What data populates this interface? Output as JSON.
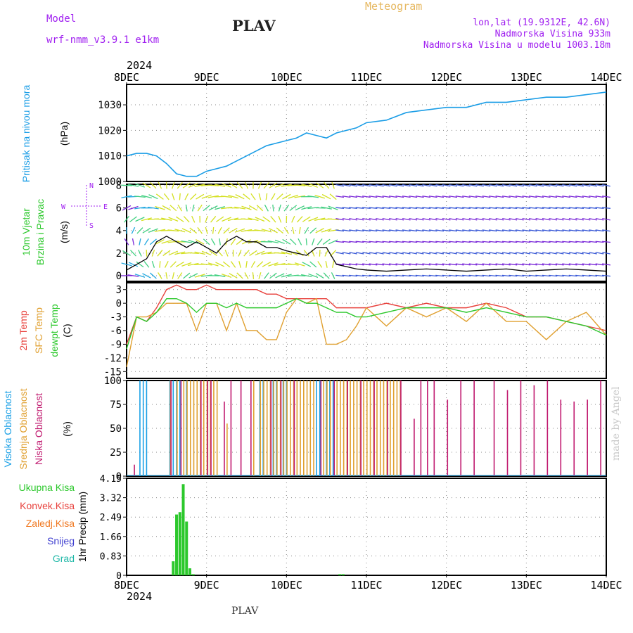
{
  "header": {
    "model_label": "Model",
    "model_name": "wrf-nmm_v3.9.1 e1km",
    "title": "PLAV",
    "meteogram": "Meteogram",
    "lonlat": "lon,lat (19.9312E, 42.6N)",
    "elevation": "Nadmorska Visina 933m",
    "model_elevation": "Nadmorska Visina u modelu 1003.18m",
    "footer": "PLAV",
    "watermark": "made by Angel"
  },
  "colors": {
    "pressure": "#1a9de6",
    "temp2m": "#e8413c",
    "sfc": "#e0a030",
    "dewpt": "#2cc82c",
    "high_cloud": "#1aa0e6",
    "mid_cloud": "#e0a030",
    "low_cloud": "#c0186e",
    "precip": "#2cc82c",
    "purple": "#a020f0"
  },
  "chart_data": [
    {
      "type": "line",
      "panel": "pressure",
      "ylabel_name": "Pritisak na nivou mora",
      "ylabel_unit": "(hPa)",
      "year_label": "2024",
      "x_ticks": [
        "8DEC",
        "9DEC",
        "10DEC",
        "11DEC",
        "12DEC",
        "13DEC",
        "14DEC"
      ],
      "ylim": [
        1000,
        1038
      ],
      "yticks": [
        "1000",
        "1010",
        "1020",
        "1030"
      ],
      "x": [
        0,
        3,
        6,
        9,
        12,
        15,
        18,
        21,
        24,
        27,
        30,
        33,
        36,
        39,
        42,
        45,
        48,
        51,
        54,
        57,
        60,
        63,
        66,
        69,
        72,
        78,
        84,
        90,
        96,
        102,
        108,
        114,
        120,
        126,
        132,
        138,
        144
      ],
      "series": [
        {
          "values": [
            1010,
            1011,
            1011,
            1010,
            1007,
            1003,
            1002,
            1002,
            1004,
            1005,
            1006,
            1008,
            1010,
            1012,
            1014,
            1015,
            1016,
            1017,
            1019,
            1018,
            1017,
            1019,
            1020,
            1021,
            1023,
            1024,
            1027,
            1028,
            1029,
            1029,
            1031,
            1031,
            1032,
            1033,
            1033,
            1034,
            1035
          ]
        }
      ]
    },
    {
      "type": "line",
      "panel": "wind",
      "ylabel_name_1": "10m Vjetar",
      "ylabel_name_2": "Brzina i Pravac",
      "ylabel_unit": "(m/s)",
      "compass_n": "N",
      "compass_s": "S",
      "compass_e": "E",
      "compass_w": "W",
      "ylim": [
        -0.5,
        8.1
      ],
      "yticks": [
        "0",
        "2",
        "4",
        "6",
        "8"
      ],
      "x": [
        0,
        3,
        6,
        9,
        12,
        15,
        18,
        21,
        24,
        27,
        30,
        33,
        36,
        39,
        42,
        45,
        48,
        51,
        54,
        57,
        60,
        63,
        66,
        69,
        72,
        78,
        84,
        90,
        96,
        102,
        108,
        114,
        120,
        126,
        132,
        138,
        144
      ],
      "series": [
        {
          "values": [
            0.5,
            1.0,
            1.5,
            3.0,
            3.5,
            3.0,
            2.5,
            3.0,
            2.5,
            2.0,
            3.0,
            3.5,
            3.0,
            3.0,
            2.5,
            2.5,
            2.2,
            2.0,
            1.8,
            2.5,
            2.5,
            1.0,
            0.8,
            0.6,
            0.5,
            0.4,
            0.5,
            0.6,
            0.5,
            0.4,
            0.5,
            0.6,
            0.4,
            0.5,
            0.6,
            0.5,
            0.4
          ]
        }
      ]
    },
    {
      "type": "line",
      "panel": "temperature",
      "ylabel_name_1": "2m Temp",
      "ylabel_name_2": "SFC Temp",
      "ylabel_name_3": "dewpt Temp",
      "ylabel_unit": "(C)",
      "ylim": [
        -16.5,
        4.5
      ],
      "yticks": [
        "3",
        "0",
        "-3",
        "-6",
        "-9",
        "-12",
        "-15"
      ],
      "x": [
        0,
        3,
        6,
        9,
        12,
        15,
        18,
        21,
        24,
        27,
        30,
        33,
        36,
        39,
        42,
        45,
        48,
        51,
        54,
        57,
        60,
        63,
        66,
        69,
        72,
        78,
        84,
        90,
        96,
        102,
        108,
        114,
        120,
        126,
        132,
        138,
        144
      ],
      "series": [
        {
          "values": [
            -9,
            -3,
            -4,
            -1,
            3,
            4,
            3,
            3,
            4,
            3,
            3,
            3,
            3,
            3,
            2,
            2,
            1,
            1,
            1,
            1,
            1,
            -1,
            -1,
            -1,
            -1,
            0,
            -1,
            0,
            -1,
            -1,
            0,
            -1,
            -3,
            -3,
            -4,
            -5,
            -6
          ]
        },
        {
          "values": [
            -14,
            -3,
            -3,
            -2,
            0,
            0,
            0,
            -6,
            0,
            0,
            -6,
            0,
            -6,
            -6,
            -8,
            -8,
            -2,
            1,
            0,
            1,
            -9,
            -9,
            -8,
            -5,
            -1,
            -5,
            -1,
            -3,
            -1,
            -4,
            0,
            -4,
            -4,
            -8,
            -4,
            -2,
            -7
          ]
        },
        {
          "values": [
            -10,
            -3,
            -4,
            -2,
            1,
            1,
            0,
            -2,
            0,
            0,
            -1,
            0,
            -1,
            -1,
            -1,
            -1,
            0,
            1,
            0,
            0,
            -1,
            -2,
            -2,
            -3,
            -3,
            -2,
            -1,
            -1,
            -1,
            -2,
            -1,
            -2,
            -3,
            -3,
            -4,
            -5,
            -7
          ]
        }
      ]
    },
    {
      "type": "bar",
      "panel": "clouds",
      "ylabel_name_1": "Visoka Oblacnost",
      "ylabel_name_2": "Srednja Oblacnost",
      "ylabel_name_3": "Niska Oblacnost",
      "ylabel_unit": "(%)",
      "ylim": [
        0,
        100
      ],
      "yticks": [
        "0",
        "25",
        "50",
        "75",
        "100"
      ],
      "series": [
        {
          "x": [
            4,
            5,
            6,
            13,
            14,
            15,
            16,
            18,
            40,
            41,
            44,
            45,
            47,
            48,
            57,
            58,
            60,
            61,
            62
          ],
          "values": [
            100,
            100,
            100,
            100,
            100,
            100,
            100,
            100,
            100,
            100,
            100,
            100,
            100,
            100,
            100,
            100,
            100,
            100,
            100
          ]
        },
        {
          "x": [
            13,
            15,
            17,
            18,
            19,
            20,
            21,
            22,
            23,
            24,
            25,
            26,
            27,
            30,
            38,
            40,
            41,
            42,
            43,
            44,
            45,
            46,
            47,
            48,
            49,
            50,
            51,
            52,
            53,
            54,
            55,
            56,
            59,
            60,
            61,
            63,
            64,
            65,
            66,
            67,
            68,
            69,
            70,
            71,
            72,
            73,
            74,
            75,
            76,
            77,
            78,
            79,
            80,
            81,
            82
          ],
          "values": [
            100,
            100,
            100,
            100,
            100,
            100,
            100,
            100,
            100,
            100,
            100,
            100,
            100,
            55,
            100,
            100,
            100,
            100,
            100,
            100,
            100,
            100,
            100,
            100,
            100,
            100,
            100,
            100,
            100,
            100,
            100,
            100,
            100,
            100,
            100,
            100,
            100,
            100,
            100,
            100,
            100,
            100,
            100,
            100,
            100,
            100,
            100,
            100,
            100,
            100,
            100,
            100,
            100,
            100,
            100
          ]
        },
        {
          "x": [
            2,
            13,
            16,
            22,
            24,
            25,
            29,
            31,
            34,
            37,
            43,
            46,
            50,
            58,
            62,
            66,
            70,
            74,
            78,
            82,
            86,
            88,
            90,
            92,
            96,
            100,
            104,
            110,
            114,
            118,
            122,
            126,
            130,
            134,
            138,
            142
          ],
          "values": [
            12,
            100,
            100,
            100,
            100,
            100,
            78,
            100,
            100,
            100,
            100,
            100,
            100,
            100,
            100,
            100,
            100,
            100,
            100,
            100,
            60,
            100,
            100,
            100,
            80,
            100,
            100,
            100,
            90,
            100,
            95,
            100,
            80,
            78,
            80,
            100
          ]
        }
      ]
    },
    {
      "type": "bar",
      "panel": "precip",
      "legend_1": "Ukupna Kisa",
      "legend_2": "Konvek.Kisa",
      "legend_3": "Zaledj.Kisa",
      "legend_4": "Snijeg",
      "legend_5": "Grad",
      "ylabel_name": "1hr Precip",
      "ylabel_unit": "(mm)",
      "ylim": [
        0,
        4.15
      ],
      "yticks": [
        "0",
        "0.83",
        "1.66",
        "2.49",
        "3.32",
        "4.15"
      ],
      "bottom_date_ticks": [
        "8DEC",
        "9DEC",
        "10DEC",
        "11DEC",
        "12DEC",
        "13DEC",
        "14DEC"
      ],
      "bottom_year": "2024",
      "series": [
        {
          "x": [
            14,
            15,
            16,
            17,
            18,
            19,
            20,
            64,
            65
          ],
          "values": [
            0.6,
            2.6,
            2.7,
            3.9,
            2.3,
            0.3,
            0.05,
            0.05,
            0.05
          ]
        }
      ]
    }
  ]
}
